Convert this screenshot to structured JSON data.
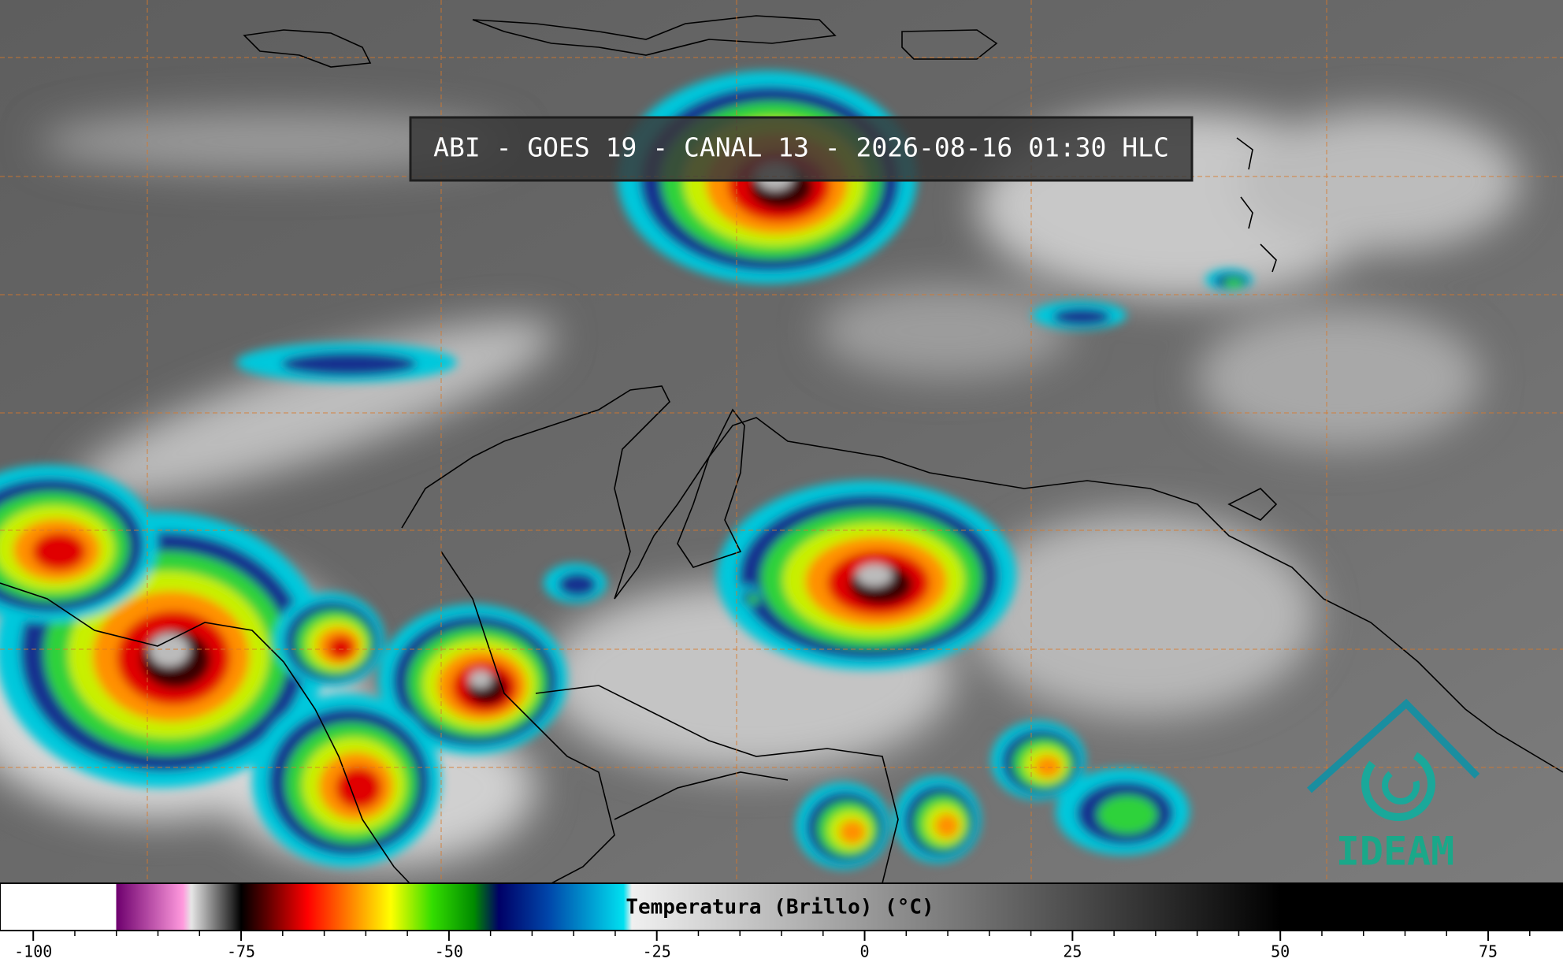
{
  "title": "ABI - GOES 19 - CANAL 13 - 2026-08-16 01:30 HLC",
  "logo": "IDEAM",
  "colorbar": {
    "label": "Temperatura (Brillo) (°C)",
    "lim": [
      -104,
      84
    ],
    "ticks": [
      -100,
      -75,
      -50,
      -25,
      0,
      25,
      50,
      75
    ],
    "minor_tick_step": 5,
    "stops": [
      {
        "value": -104,
        "color": "#ffffff"
      },
      {
        "value": -90,
        "color": "#ffffff"
      },
      {
        "value": -90,
        "color": "#6e006e"
      },
      {
        "value": -82,
        "color": "#ff99dd"
      },
      {
        "value": -81,
        "color": "#e6e6e6"
      },
      {
        "value": -76,
        "color": "#2a2a2a"
      },
      {
        "value": -75,
        "color": "#000000"
      },
      {
        "value": -72,
        "color": "#5a0000"
      },
      {
        "value": -67,
        "color": "#ff0000"
      },
      {
        "value": -61,
        "color": "#ff9900"
      },
      {
        "value": -57,
        "color": "#ffff00"
      },
      {
        "value": -52,
        "color": "#33dd00"
      },
      {
        "value": -47,
        "color": "#008a00"
      },
      {
        "value": -44,
        "color": "#000066"
      },
      {
        "value": -38,
        "color": "#0046aa"
      },
      {
        "value": -29,
        "color": "#00e0f0"
      },
      {
        "value": -28,
        "color": "#f0f0f0"
      },
      {
        "value": 50,
        "color": "#000000"
      },
      {
        "value": 84,
        "color": "#000000"
      }
    ]
  }
}
